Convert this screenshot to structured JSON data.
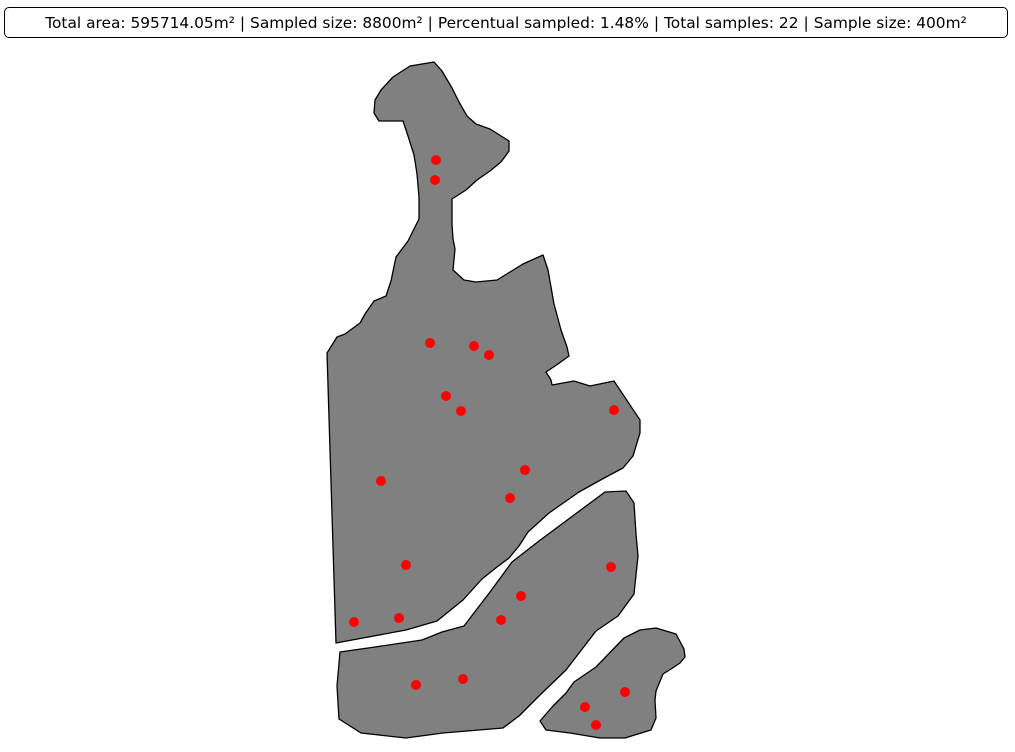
{
  "summary": {
    "total_area": "Total area: 595714.05m²",
    "sampled_size": "Sampled size: 8800m²",
    "percent_sampled": "Percentual sampled: 1.48%",
    "total_samples": "Total samples: 22",
    "sample_size": "Sample size: 400m²",
    "separator": "|"
  },
  "colors": {
    "area_fill": "#808080",
    "area_stroke": "#000000",
    "sample_point": "#ff0000"
  },
  "map": {
    "area_count": 3,
    "sample_count": 22
  }
}
